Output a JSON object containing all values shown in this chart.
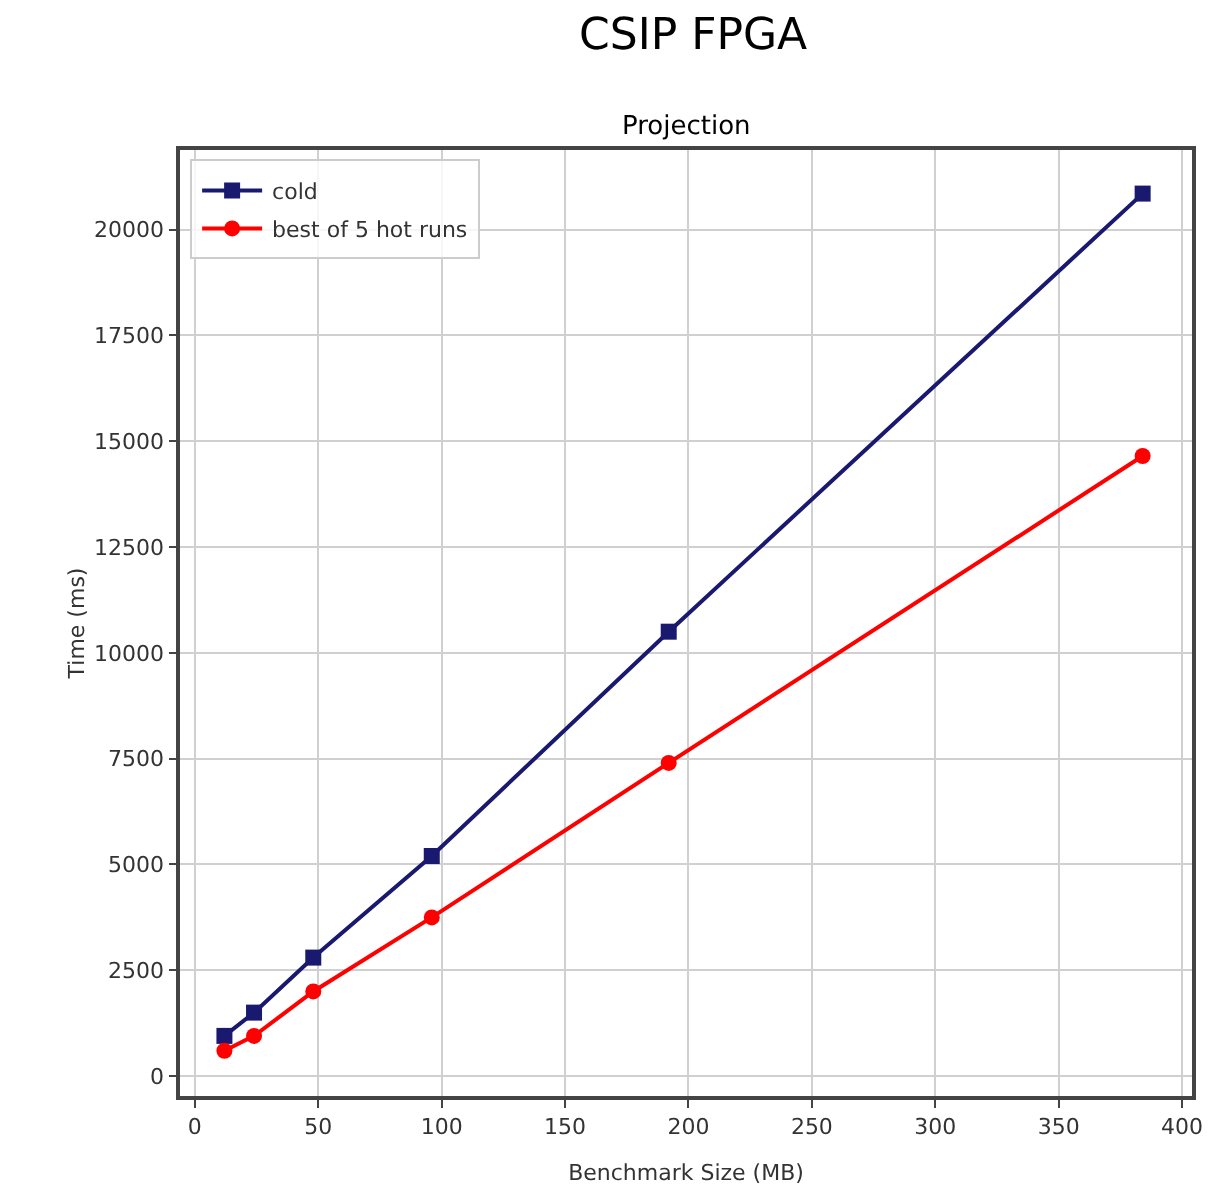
{
  "chart_data": {
    "type": "line",
    "title": "CSIP FPGA",
    "subtitle": "Projection",
    "xlabel": "Benchmark Size (MB)",
    "ylabel": "Time (ms)",
    "x": [
      12,
      24,
      48,
      96,
      192,
      384
    ],
    "series": [
      {
        "name": "cold",
        "color": "#191970",
        "marker": "square",
        "values": [
          950,
          1500,
          2800,
          5200,
          10500,
          20850
        ]
      },
      {
        "name": "best of 5 hot runs",
        "color": "#ff0000",
        "marker": "circle",
        "values": [
          600,
          950,
          2000,
          3750,
          7400,
          14650
        ]
      }
    ],
    "xlim": [
      -6,
      404
    ],
    "xticks": [
      0,
      50,
      100,
      150,
      200,
      250,
      300,
      350,
      400
    ],
    "ylim": [
      -470,
      21880
    ],
    "yticks": [
      0,
      2500,
      5000,
      7500,
      10000,
      12500,
      15000,
      17500,
      20000
    ],
    "grid": true,
    "legend": "top left",
    "line_style": "solid"
  }
}
